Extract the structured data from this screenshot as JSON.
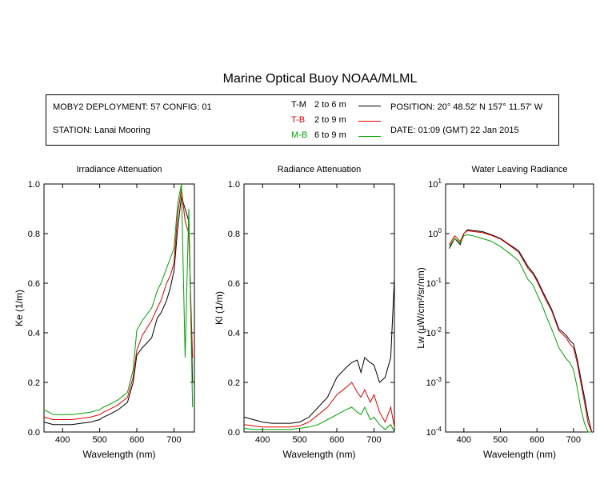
{
  "title": "Marine Optical Buoy NOAA/MLML",
  "info": {
    "deployment": "MOBY2 DEPLOYMENT: 57 CONFIG: 01",
    "station": "STATION: Lanai Mooring",
    "position": "POSITION: 20° 48.52' N   157° 11.57' W",
    "date": "DATE: 01:09 (GMT) 22 Jan 2015"
  },
  "legend": [
    {
      "name": "T-M",
      "range": "2 to 6  m",
      "color": "#000000"
    },
    {
      "name": "T-B",
      "range": "2 to 9  m",
      "color": "#e00000"
    },
    {
      "name": "M-B",
      "range": "6 to 9  m",
      "color": "#00a000"
    }
  ],
  "chart_data": [
    {
      "type": "line",
      "title": "Irradiance Attenuation",
      "xlabel": "Wavelength (nm)",
      "ylabel": "Ke  (1/m)",
      "xlim": [
        350,
        755
      ],
      "ylim": [
        0,
        1
      ],
      "xticks": [
        400,
        500,
        600,
        700
      ],
      "yticks": [
        0.0,
        0.2,
        0.4,
        0.6,
        0.8,
        1.0
      ],
      "ytick_labels": [
        "0.0",
        "0.2",
        "0.4",
        "0.6",
        "0.8",
        "1.0"
      ],
      "x": [
        350,
        375,
        400,
        425,
        450,
        475,
        500,
        510,
        525,
        550,
        575,
        590,
        600,
        615,
        640,
        655,
        665,
        680,
        690,
        700,
        710,
        720,
        730,
        740,
        750
      ],
      "series": [
        {
          "name": "T-M",
          "color": "#000000",
          "values": [
            0.04,
            0.03,
            0.03,
            0.03,
            0.035,
            0.04,
            0.05,
            0.06,
            0.07,
            0.09,
            0.12,
            0.2,
            0.31,
            0.34,
            0.38,
            0.46,
            0.48,
            0.53,
            0.58,
            0.65,
            0.82,
            0.95,
            0.9,
            0.85,
            0.2
          ]
        },
        {
          "name": "T-B",
          "color": "#e00000",
          "values": [
            0.06,
            0.05,
            0.05,
            0.05,
            0.055,
            0.06,
            0.07,
            0.08,
            0.09,
            0.11,
            0.14,
            0.22,
            0.33,
            0.39,
            0.45,
            0.5,
            0.53,
            0.6,
            0.63,
            0.68,
            0.88,
            0.98,
            0.85,
            0.8,
            0.3
          ]
        },
        {
          "name": "M-B",
          "color": "#00a000",
          "values": [
            0.09,
            0.07,
            0.07,
            0.07,
            0.075,
            0.08,
            0.09,
            0.1,
            0.11,
            0.13,
            0.16,
            0.25,
            0.41,
            0.45,
            0.5,
            0.57,
            0.6,
            0.66,
            0.7,
            0.74,
            0.92,
            1.0,
            0.3,
            0.9,
            0.1
          ]
        }
      ]
    },
    {
      "type": "line",
      "title": "Radiance Attenuation",
      "xlabel": "Wavelength (nm)",
      "ylabel": "Kl  (1/m)",
      "xlim": [
        350,
        755
      ],
      "ylim": [
        0,
        1
      ],
      "xticks": [
        400,
        500,
        600,
        700
      ],
      "yticks": [
        0.0,
        0.2,
        0.4,
        0.6,
        0.8,
        1.0
      ],
      "ytick_labels": [
        "0.0",
        "0.2",
        "0.4",
        "0.6",
        "0.8",
        "1.0"
      ],
      "x": [
        350,
        375,
        400,
        425,
        450,
        475,
        500,
        525,
        550,
        575,
        600,
        625,
        640,
        655,
        665,
        675,
        690,
        700,
        715,
        730,
        745,
        755
      ],
      "series": [
        {
          "name": "T-M",
          "color": "#000000",
          "values": [
            0.06,
            0.05,
            0.04,
            0.035,
            0.035,
            0.035,
            0.04,
            0.06,
            0.1,
            0.14,
            0.22,
            0.26,
            0.28,
            0.29,
            0.24,
            0.3,
            0.28,
            0.27,
            0.2,
            0.22,
            0.3,
            0.62
          ]
        },
        {
          "name": "T-B",
          "color": "#e00000",
          "values": [
            0.03,
            0.025,
            0.02,
            0.02,
            0.02,
            0.02,
            0.025,
            0.04,
            0.07,
            0.1,
            0.15,
            0.18,
            0.2,
            0.16,
            0.14,
            0.17,
            0.12,
            0.15,
            0.08,
            0.04,
            0.1,
            0.02
          ]
        },
        {
          "name": "M-B",
          "color": "#00a000",
          "values": [
            0.015,
            0.01,
            0.01,
            0.01,
            0.01,
            0.01,
            0.015,
            0.02,
            0.03,
            0.05,
            0.07,
            0.09,
            0.1,
            0.08,
            0.07,
            0.1,
            0.05,
            0.06,
            0.03,
            0.01,
            0.03,
            0.0
          ]
        }
      ]
    },
    {
      "type": "line",
      "title": "Water Leaving Radiance",
      "xlabel": "Wavelength (nm)",
      "ylabel": "Lw  (μW/cm²/sr/nm)",
      "yscale": "log",
      "xlim": [
        350,
        755
      ],
      "ylim": [
        0.0001,
        10
      ],
      "xticks": [
        400,
        500,
        600,
        700
      ],
      "yticks": [
        0.0001,
        0.001,
        0.01,
        0.1,
        1,
        10
      ],
      "ytick_bases": [
        "10",
        "10",
        "10",
        "10",
        "10",
        "10"
      ],
      "ytick_exps": [
        "-4",
        "-3",
        "-2",
        "-1",
        "0",
        "1"
      ],
      "x": [
        360,
        375,
        390,
        400,
        410,
        425,
        450,
        475,
        500,
        525,
        550,
        575,
        590,
        600,
        615,
        625,
        640,
        660,
        680,
        690,
        700,
        710,
        720,
        730,
        740,
        750
      ],
      "series": [
        {
          "name": "T-M",
          "color": "#000000",
          "values": [
            0.5,
            0.8,
            0.6,
            1.0,
            1.2,
            1.15,
            1.1,
            0.95,
            0.8,
            0.6,
            0.45,
            0.22,
            0.16,
            0.12,
            0.07,
            0.05,
            0.03,
            0.012,
            0.009,
            0.007,
            0.006,
            0.003,
            0.0012,
            0.0005,
            0.0002,
            0.0001
          ]
        },
        {
          "name": "T-B",
          "color": "#e00000",
          "values": [
            0.6,
            0.9,
            0.7,
            1.0,
            1.15,
            1.1,
            1.05,
            0.92,
            0.78,
            0.58,
            0.42,
            0.2,
            0.15,
            0.11,
            0.065,
            0.045,
            0.028,
            0.011,
            0.008,
            0.006,
            0.005,
            0.0025,
            0.001,
            0.0004,
            0.00015,
            0.0001
          ]
        },
        {
          "name": "M-B",
          "color": "#00a000",
          "values": [
            0.55,
            0.8,
            0.65,
            0.9,
            0.95,
            0.9,
            0.8,
            0.7,
            0.55,
            0.4,
            0.28,
            0.12,
            0.09,
            0.06,
            0.035,
            0.022,
            0.012,
            0.005,
            0.003,
            0.0025,
            0.0018,
            0.0008,
            0.0003,
            0.00015,
            0.0001,
            0.0001
          ]
        }
      ]
    }
  ]
}
